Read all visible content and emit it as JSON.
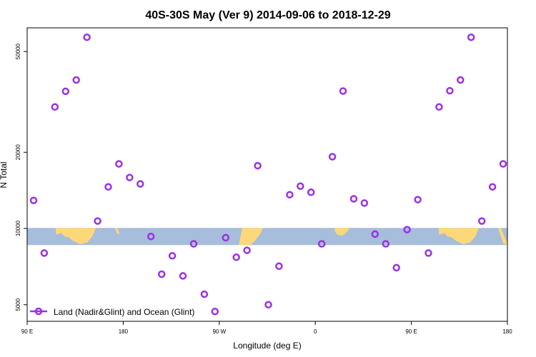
{
  "chart_data": {
    "type": "scatter",
    "title": "40S-30S May (Ver 9)   2014-09-06 to 2018-12-29",
    "xlabel": "Longitude (deg E)",
    "ylabel": "N Total",
    "xlim": [
      90,
      540
    ],
    "ylim": [
      4300,
      62000
    ],
    "y_scale": "log",
    "x_ticks": [
      {
        "value": 90,
        "label": "90 E"
      },
      {
        "value": 180,
        "label": "180"
      },
      {
        "value": 270,
        "label": "90 W"
      },
      {
        "value": 360,
        "label": "0"
      },
      {
        "value": 450,
        "label": "90 E"
      },
      {
        "value": 540,
        "label": "180"
      }
    ],
    "y_ticks": [
      {
        "value": 5000,
        "label": "5000"
      },
      {
        "value": 10000,
        "label": "10000"
      },
      {
        "value": 20000,
        "label": "20000"
      },
      {
        "value": 50000,
        "label": "50000"
      }
    ],
    "grid": false,
    "legend": {
      "position": "bottom-left"
    },
    "band": {
      "y_low": 8600,
      "y_high": 10050,
      "ocean_color": "#a6bddb",
      "land_color": "#fdd87a"
    },
    "series": [
      {
        "name": "Land (Nadir&Glint) and Ocean (Glint)",
        "color": "#9b30e8",
        "x": [
          96,
          106,
          116,
          126,
          136,
          146,
          156,
          166,
          176,
          186,
          196,
          206,
          216,
          226,
          236,
          246,
          256,
          266,
          276,
          286,
          296,
          306,
          316,
          326,
          336,
          346,
          356,
          366,
          376,
          386,
          396,
          406,
          416,
          426,
          436,
          446,
          456,
          466,
          476,
          486,
          496,
          506,
          516,
          526,
          536
        ],
        "y": [
          12900,
          8000,
          30200,
          34800,
          38600,
          56900,
          10700,
          14600,
          18000,
          15900,
          15000,
          9300,
          6600,
          7800,
          6500,
          8700,
          5500,
          4700,
          9200,
          7700,
          8200,
          17700,
          5000,
          7100,
          13600,
          14700,
          13900,
          8700,
          19200,
          34900,
          13100,
          12600,
          9500,
          8700,
          7000,
          9900,
          13000,
          8000,
          30200,
          35000,
          38600,
          56900,
          10700,
          14600,
          18000
        ]
      }
    ]
  }
}
